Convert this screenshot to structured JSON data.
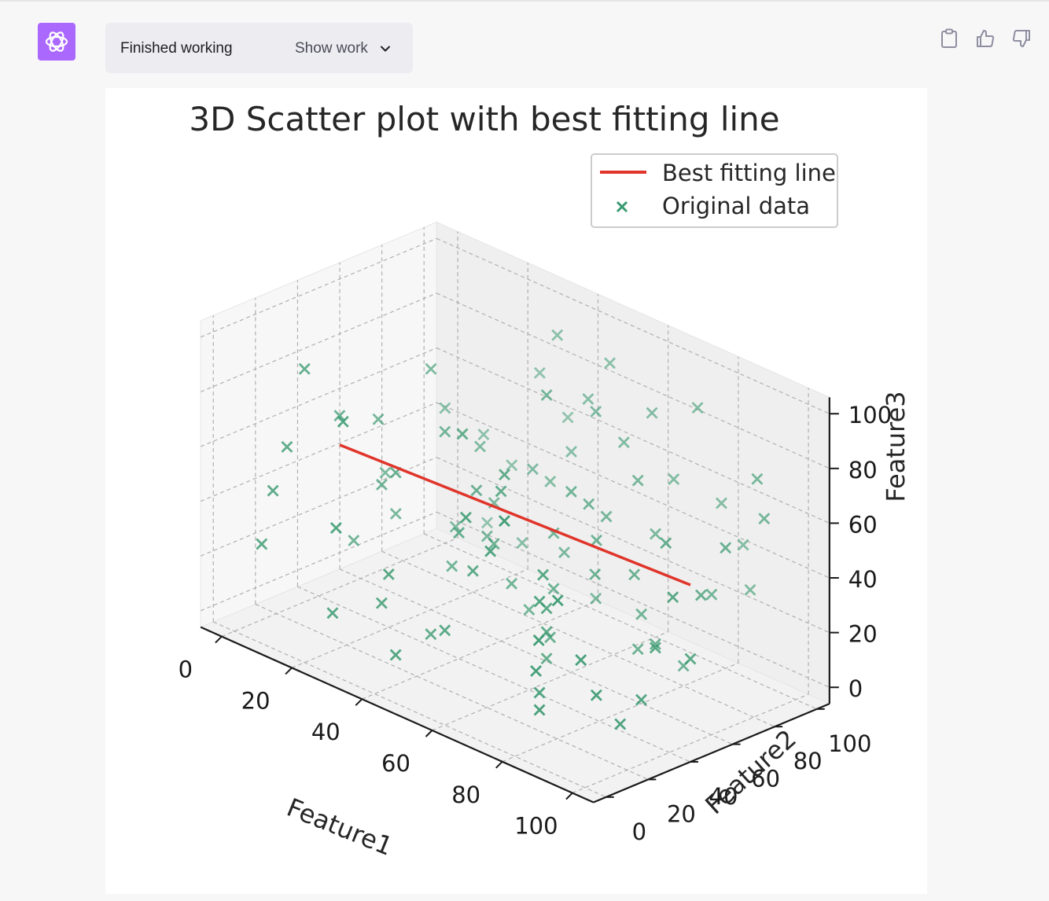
{
  "status": {
    "text": "Finished working",
    "toggle_label": "Show work"
  },
  "icons": {
    "avatar": "openai-logo-icon",
    "toggle": "chevron-down-icon",
    "copy": "clipboard-icon",
    "like": "thumbs-up-icon",
    "dislike": "thumbs-down-icon"
  },
  "colors": {
    "avatar_bg": "#ab68ff",
    "points": "#3a9a70",
    "line": "#e0352b"
  },
  "chart_data": {
    "type": "scatter",
    "projection": "3d",
    "title": "3D Scatter plot with best fitting line",
    "xlabel": "Feature1",
    "ylabel": "Feature2",
    "zlabel": "Feature3",
    "xlim": [
      0,
      100
    ],
    "ylim": [
      0,
      100
    ],
    "zlim": [
      0,
      100
    ],
    "xticks": [
      "0",
      "20",
      "40",
      "60",
      "80",
      "100"
    ],
    "yticks": [
      "0",
      "20",
      "40",
      "60",
      "80",
      "100"
    ],
    "zticks": [
      "0",
      "20",
      "40",
      "60",
      "80",
      "100"
    ],
    "grid": true,
    "legend": {
      "position": "top-right",
      "line_label": "Best fitting line",
      "scatter_label": "Original data"
    },
    "best_fit_line": {
      "x": [
        0,
        100
      ],
      "y": [
        50,
        50
      ],
      "z": [
        46,
        52
      ]
    },
    "points": [
      [
        8,
        20,
        88
      ],
      [
        12,
        30,
        70
      ],
      [
        6,
        15,
        60
      ],
      [
        14,
        45,
        65
      ],
      [
        5,
        10,
        45
      ],
      [
        3,
        8,
        25
      ],
      [
        10,
        55,
        40
      ],
      [
        18,
        40,
        45
      ],
      [
        25,
        35,
        55
      ],
      [
        20,
        60,
        82
      ],
      [
        30,
        50,
        68
      ],
      [
        28,
        70,
        55
      ],
      [
        35,
        65,
        40
      ],
      [
        40,
        75,
        52
      ],
      [
        42,
        80,
        47
      ],
      [
        45,
        85,
        58
      ],
      [
        38,
        90,
        95
      ],
      [
        48,
        88,
        78
      ],
      [
        50,
        95,
        90
      ],
      [
        52,
        70,
        30
      ],
      [
        55,
        60,
        42
      ],
      [
        58,
        55,
        25
      ],
      [
        60,
        50,
        10
      ],
      [
        62,
        45,
        5
      ],
      [
        65,
        40,
        18
      ],
      [
        68,
        35,
        30
      ],
      [
        70,
        30,
        45
      ],
      [
        72,
        25,
        38
      ],
      [
        75,
        20,
        8
      ],
      [
        78,
        15,
        5
      ],
      [
        80,
        10,
        22
      ],
      [
        82,
        8,
        35
      ],
      [
        85,
        12,
        50
      ],
      [
        88,
        18,
        28
      ],
      [
        90,
        22,
        15
      ],
      [
        92,
        30,
        3
      ],
      [
        95,
        35,
        12
      ],
      [
        96,
        40,
        30
      ],
      [
        98,
        45,
        48
      ],
      [
        100,
        50,
        25
      ],
      [
        55,
        80,
        80
      ],
      [
        60,
        85,
        70
      ],
      [
        65,
        90,
        82
      ],
      [
        70,
        92,
        60
      ],
      [
        75,
        95,
        88
      ],
      [
        80,
        98,
        55
      ],
      [
        85,
        100,
        42
      ],
      [
        90,
        95,
        30
      ],
      [
        95,
        90,
        75
      ],
      [
        100,
        85,
        65
      ],
      [
        30,
        20,
        15
      ],
      [
        35,
        15,
        30
      ],
      [
        40,
        10,
        5
      ],
      [
        45,
        25,
        12
      ],
      [
        50,
        30,
        35
      ],
      [
        15,
        75,
        60
      ],
      [
        20,
        85,
        50
      ],
      [
        25,
        90,
        40
      ],
      [
        30,
        95,
        75
      ],
      [
        35,
        100,
        60
      ],
      [
        60,
        60,
        60
      ],
      [
        62,
        65,
        55
      ],
      [
        64,
        70,
        50
      ],
      [
        66,
        62,
        45
      ],
      [
        68,
        58,
        35
      ],
      [
        70,
        75,
        65
      ],
      [
        72,
        80,
        45
      ],
      [
        74,
        70,
        20
      ],
      [
        76,
        65,
        10
      ],
      [
        78,
        60,
        40
      ],
      [
        40,
        40,
        40
      ],
      [
        42,
        45,
        55
      ],
      [
        44,
        50,
        35
      ],
      [
        46,
        55,
        20
      ],
      [
        48,
        60,
        10
      ],
      [
        22,
        10,
        10
      ],
      [
        26,
        5,
        45
      ],
      [
        32,
        50,
        20
      ],
      [
        36,
        60,
        30
      ],
      [
        52,
        40,
        62
      ],
      [
        56,
        35,
        72
      ],
      [
        58,
        75,
        15
      ],
      [
        84,
        60,
        18
      ],
      [
        86,
        70,
        8
      ],
      [
        88,
        80,
        32
      ],
      [
        90,
        55,
        60
      ],
      [
        94,
        65,
        40
      ],
      [
        98,
        70,
        58
      ],
      [
        10,
        40,
        20
      ],
      [
        16,
        50,
        30
      ],
      [
        24,
        65,
        25
      ],
      [
        34,
        80,
        20
      ],
      [
        44,
        35,
        80
      ],
      [
        54,
        20,
        60
      ],
      [
        64,
        15,
        55
      ],
      [
        74,
        5,
        75
      ],
      [
        18,
        90,
        15
      ],
      [
        28,
        5,
        85
      ],
      [
        38,
        30,
        5
      ],
      [
        50,
        65,
        88
      ]
    ]
  }
}
